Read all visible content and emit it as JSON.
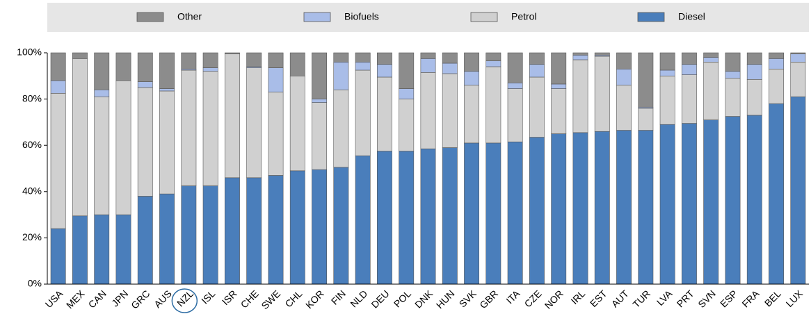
{
  "chart_data": {
    "type": "stacked_bar",
    "categories": [
      "USA",
      "MEX",
      "CAN",
      "JPN",
      "GRC",
      "AUS",
      "NZL",
      "ISL",
      "ISR",
      "CHE",
      "SWE",
      "CHL",
      "KOR",
      "FIN",
      "NLD",
      "DEU",
      "POL",
      "DNK",
      "HUN",
      "SVK",
      "GBR",
      "ITA",
      "CZE",
      "NOR",
      "IRL",
      "EST",
      "AUT",
      "TUR",
      "LVA",
      "PRT",
      "SVN",
      "ESP",
      "FRA",
      "BEL",
      "LUX"
    ],
    "series": [
      {
        "name": "Diesel",
        "color": "#4a7ebb",
        "values": [
          24,
          29.5,
          30,
          30,
          38,
          39,
          42.5,
          42.5,
          46,
          46,
          47,
          49,
          49.5,
          50.5,
          55.5,
          57.5,
          57.5,
          58.5,
          59,
          61,
          61,
          61.5,
          63.5,
          65,
          65.5,
          66,
          66.5,
          66.5,
          69,
          69.5,
          71,
          72.5,
          73,
          78,
          81
        ]
      },
      {
        "name": "Petrol",
        "color": "#d0d0d0",
        "values": [
          58.5,
          68,
          51,
          58,
          47,
          44.5,
          50,
          49.5,
          53.5,
          47.5,
          36,
          41,
          29,
          33.5,
          37,
          32,
          22.5,
          33,
          32,
          25,
          33,
          23,
          26,
          19.5,
          31.5,
          32.5,
          19.5,
          9.5,
          21,
          21,
          25,
          16.5,
          15.5,
          15,
          15
        ]
      },
      {
        "name": "Biofuels",
        "color": "#a9bde8",
        "values": [
          5.5,
          0,
          3,
          0,
          2.5,
          1,
          0.5,
          1.5,
          0,
          0.5,
          10.5,
          0,
          1.5,
          12,
          3.5,
          5.5,
          4.5,
          6,
          4.5,
          6,
          2.5,
          2.5,
          5.5,
          2,
          2,
          0.5,
          7,
          0.5,
          2.5,
          4.5,
          2,
          3,
          6.5,
          4.5,
          3.5
        ]
      },
      {
        "name": "Other",
        "color": "#8c8c8c",
        "values": [
          12,
          2.5,
          16,
          12,
          12.5,
          15.5,
          7,
          6.5,
          0.5,
          6,
          6.5,
          10,
          20,
          4,
          4,
          5,
          15.5,
          2.5,
          4.5,
          8,
          3.5,
          13,
          5,
          13.5,
          1,
          1,
          7,
          23.5,
          7.5,
          5,
          2,
          8,
          5,
          2.5,
          0.5
        ]
      }
    ],
    "ylim": [
      0,
      100
    ],
    "yticks": [
      {
        "value": 0,
        "label": "0%"
      },
      {
        "value": 20,
        "label": "20%"
      },
      {
        "value": 40,
        "label": "40%"
      },
      {
        "value": 60,
        "label": "60%"
      },
      {
        "value": 80,
        "label": "80%"
      },
      {
        "value": 100,
        "label": "100%"
      }
    ],
    "grid": false
  }
}
